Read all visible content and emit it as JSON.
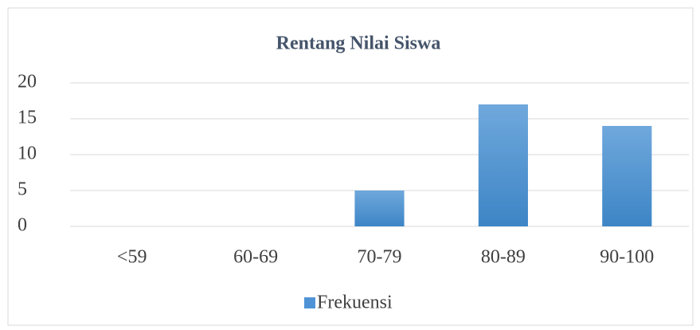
{
  "chart_data": {
    "type": "bar",
    "title": "Rentang Nilai Siswa",
    "categories": [
      "<59",
      "60-69",
      "70-79",
      "80-89",
      "90-100"
    ],
    "series": [
      {
        "name": "Frekuensi",
        "color": "#4f93d6",
        "values": [
          0,
          0,
          5,
          17,
          14
        ]
      }
    ],
    "ylim": [
      0,
      20
    ],
    "yticks": [
      0,
      5,
      10,
      15,
      20
    ],
    "grid": true,
    "legend": "bottom"
  }
}
